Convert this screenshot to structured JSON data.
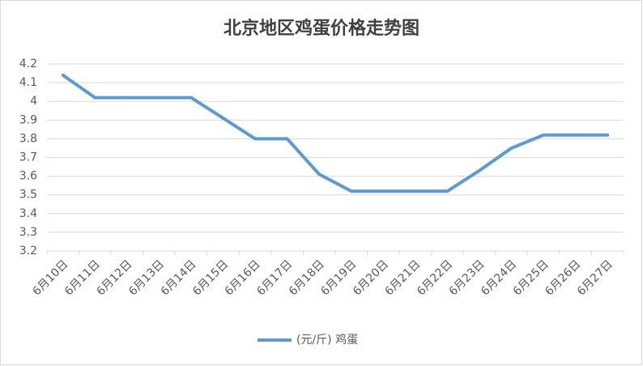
{
  "chart_data": {
    "type": "line",
    "title": "北京地区鸡蛋价格走势图",
    "categories": [
      "6月10日",
      "6月11日",
      "6月12日",
      "6月13日",
      "6月14日",
      "6月15日",
      "6月16日",
      "6月17日",
      "6月18日",
      "6月19日",
      "6月20日",
      "6月21日",
      "6月22日",
      "6月23日",
      "6月24日",
      "6月25日",
      "6月26日",
      "6月27日"
    ],
    "series": [
      {
        "name": "(元/斤) 鸡蛋",
        "color": "#5b9bd5",
        "values": [
          4.14,
          4.02,
          4.02,
          4.02,
          4.02,
          3.91,
          3.8,
          3.8,
          3.61,
          3.52,
          3.52,
          3.52,
          3.52,
          3.63,
          3.75,
          3.82,
          3.82,
          3.82
        ]
      }
    ],
    "ylim": [
      3.2,
      4.2
    ],
    "yticks": [
      3.2,
      3.3,
      3.4,
      3.5,
      3.6,
      3.7,
      3.8,
      3.9,
      4,
      4.1,
      4.2
    ],
    "grid": true,
    "legend": "bottom"
  }
}
